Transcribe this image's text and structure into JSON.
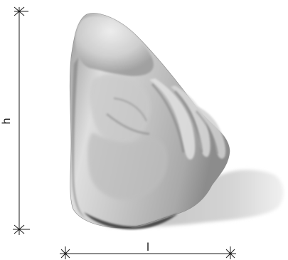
{
  "labels": {
    "height": "h",
    "length": "l"
  },
  "colors": {
    "dimension_lines": "#1a1a1a",
    "object_light": "#e6e6e6",
    "object_mid": "#b5b5b5",
    "object_dark": "#5e5e5e",
    "shadow": "#cfcfcf"
  }
}
